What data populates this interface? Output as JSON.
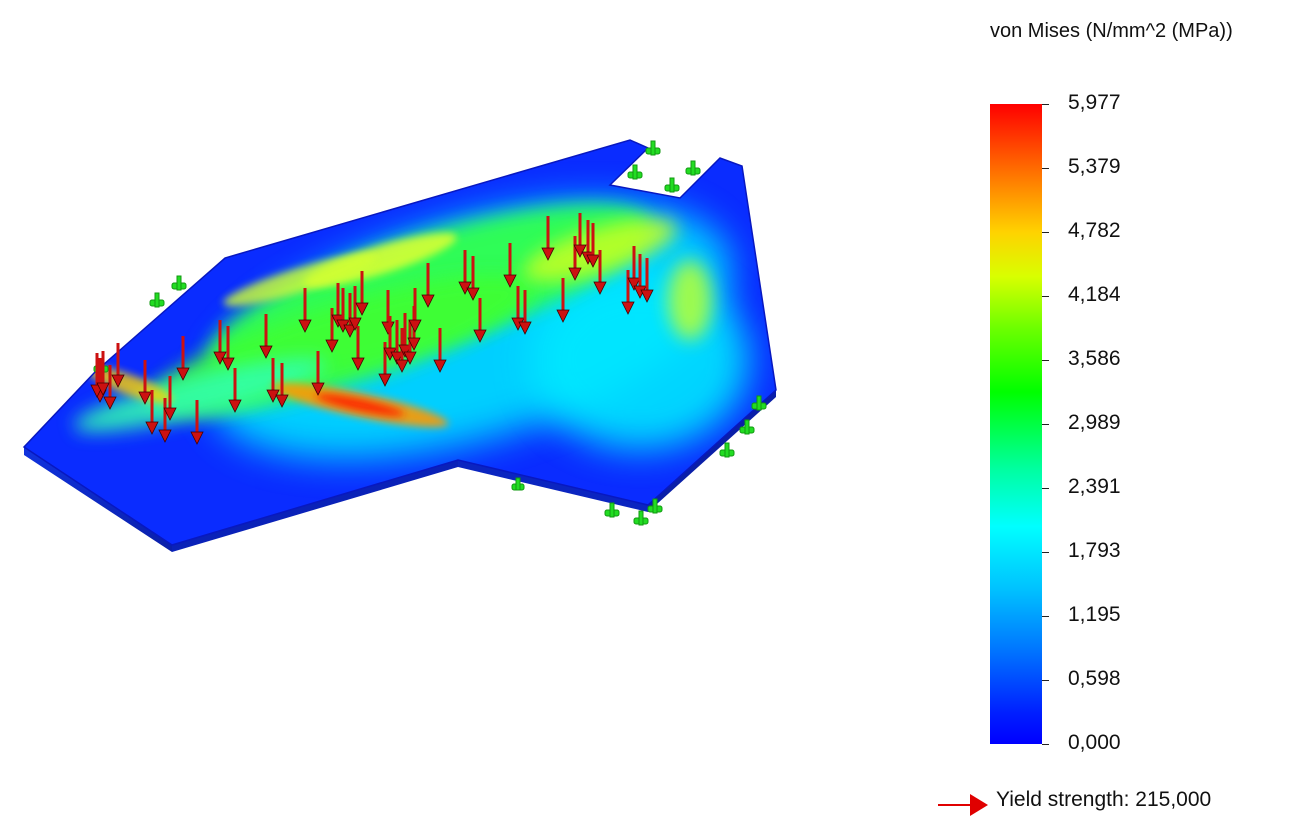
{
  "legend": {
    "title": "von Mises (N/mm^2 (MPa))",
    "ticks": [
      "5,977",
      "5,379",
      "4,782",
      "4,184",
      "3,586",
      "2,989",
      "2,391",
      "1,793",
      "1,195",
      "0,598",
      "0,000"
    ]
  },
  "yield": {
    "label": "Yield strength: 215,000"
  },
  "colors": {
    "max": "#ff0000",
    "min": "#0000ff",
    "load_arrow": "#cc1111",
    "fixture": "#22dd22"
  },
  "icons": {
    "load": "load-arrow-icon",
    "fixture": "fixture-icon"
  }
}
